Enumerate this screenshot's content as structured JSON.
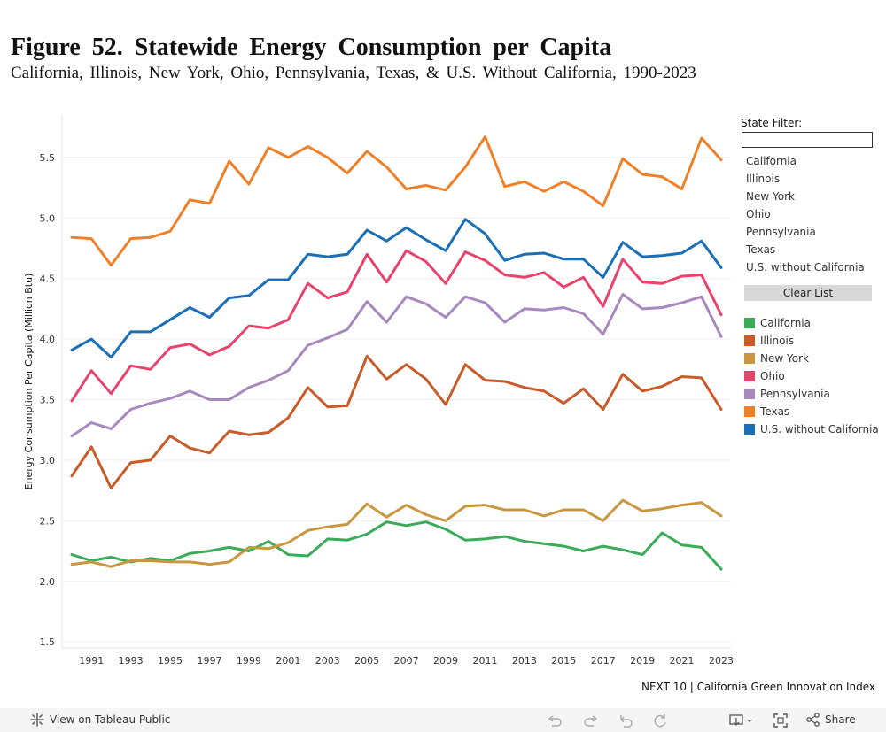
{
  "header": {
    "title": "Figure 52. Statewide Energy Consumption per Capita",
    "subtitle": "California, Illinois, New York, Ohio, Pennsylvania, Texas, & U.S. Without California, 1990-2023"
  },
  "filter": {
    "label": "State Filter:",
    "input_value": "",
    "items": [
      "California",
      "Illinois",
      "New York",
      "Ohio",
      "Pennsylvania",
      "Texas",
      "U.S. without California"
    ],
    "clear_label": "Clear List"
  },
  "credit": "NEXT 10 | California Green Innovation Index",
  "footer": {
    "view_label": "View on Tableau Public",
    "share_label": "Share",
    "icons": [
      "undo-icon",
      "redo-icon",
      "revert-icon",
      "refresh-icon",
      "download-icon",
      "fullscreen-icon",
      "share-icon"
    ]
  },
  "chart_data": {
    "type": "line",
    "ylabel": "Energy Consumption Per Capita (Million Btu)",
    "xlabel": "",
    "x": [
      1990,
      1991,
      1992,
      1993,
      1994,
      1995,
      1996,
      1997,
      1998,
      1999,
      2000,
      2001,
      2002,
      2003,
      2004,
      2005,
      2006,
      2007,
      2008,
      2009,
      2010,
      2011,
      2012,
      2013,
      2014,
      2015,
      2016,
      2017,
      2018,
      2019,
      2020,
      2021,
      2022,
      2023
    ],
    "xticks": [
      1991,
      1993,
      1995,
      1997,
      1999,
      2001,
      2003,
      2005,
      2007,
      2009,
      2011,
      2013,
      2015,
      2017,
      2019,
      2021,
      2023
    ],
    "yticks": [
      "1.5",
      "2.0",
      "2.5",
      "3.0",
      "3.5",
      "4.0",
      "4.5",
      "5.0",
      "5.5"
    ],
    "ylim": [
      1.45,
      5.85
    ],
    "grid": true,
    "legend_position": "right",
    "series": [
      {
        "name": "California",
        "color": "#3aab59",
        "values": [
          2.22,
          2.17,
          2.2,
          2.16,
          2.19,
          2.17,
          2.23,
          2.25,
          2.28,
          2.25,
          2.33,
          2.22,
          2.21,
          2.35,
          2.34,
          2.39,
          2.49,
          2.46,
          2.49,
          2.43,
          2.34,
          2.35,
          2.37,
          2.33,
          2.31,
          2.29,
          2.25,
          2.29,
          2.26,
          2.22,
          2.4,
          2.3,
          2.28,
          2.1
        ]
      },
      {
        "name": "Illinois",
        "color": "#c85b27",
        "values": [
          2.87,
          3.11,
          2.77,
          2.98,
          3.0,
          3.2,
          3.1,
          3.06,
          3.24,
          3.21,
          3.23,
          3.35,
          3.6,
          3.44,
          3.45,
          3.86,
          3.67,
          3.79,
          3.67,
          3.46,
          3.79,
          3.66,
          3.65,
          3.6,
          3.57,
          3.47,
          3.59,
          3.42,
          3.71,
          3.57,
          3.61,
          3.69,
          3.68,
          3.42
        ]
      },
      {
        "name": "New York",
        "color": "#c9973f",
        "values": [
          2.14,
          2.16,
          2.12,
          2.17,
          2.17,
          2.16,
          2.16,
          2.14,
          2.16,
          2.28,
          2.27,
          2.32,
          2.42,
          2.45,
          2.47,
          2.64,
          2.53,
          2.63,
          2.55,
          2.5,
          2.62,
          2.63,
          2.59,
          2.59,
          2.54,
          2.59,
          2.59,
          2.5,
          2.67,
          2.58,
          2.6,
          2.63,
          2.65,
          2.54
        ]
      },
      {
        "name": "Ohio",
        "color": "#e8436b",
        "values": [
          3.49,
          3.74,
          3.55,
          3.78,
          3.75,
          3.93,
          3.96,
          3.87,
          3.94,
          4.11,
          4.09,
          4.16,
          4.46,
          4.34,
          4.39,
          4.7,
          4.47,
          4.73,
          4.64,
          4.46,
          4.72,
          4.65,
          4.53,
          4.51,
          4.55,
          4.43,
          4.51,
          4.27,
          4.66,
          4.47,
          4.46,
          4.52,
          4.53,
          4.2
        ]
      },
      {
        "name": "Pennsylvania",
        "color": "#a889be",
        "values": [
          3.2,
          3.31,
          3.26,
          3.42,
          3.47,
          3.51,
          3.57,
          3.5,
          3.5,
          3.6,
          3.66,
          3.74,
          3.95,
          4.01,
          4.08,
          4.31,
          4.14,
          4.35,
          4.29,
          4.18,
          4.35,
          4.3,
          4.14,
          4.25,
          4.24,
          4.26,
          4.21,
          4.04,
          4.37,
          4.25,
          4.26,
          4.3,
          4.35,
          4.02
        ]
      },
      {
        "name": "Texas",
        "color": "#f08028",
        "values": [
          4.84,
          4.83,
          4.61,
          4.83,
          4.84,
          4.89,
          5.15,
          5.12,
          5.47,
          5.28,
          5.58,
          5.5,
          5.59,
          5.5,
          5.37,
          5.55,
          5.42,
          5.24,
          5.27,
          5.23,
          5.42,
          5.67,
          5.26,
          5.3,
          5.22,
          5.3,
          5.22,
          5.1,
          5.49,
          5.36,
          5.34,
          5.24,
          5.66,
          5.48
        ]
      },
      {
        "name": "U.S. without California",
        "color": "#1a6fb5",
        "values": [
          3.91,
          4.0,
          3.85,
          4.06,
          4.06,
          4.16,
          4.26,
          4.18,
          4.34,
          4.36,
          4.49,
          4.49,
          4.7,
          4.68,
          4.7,
          4.9,
          4.81,
          4.92,
          4.82,
          4.73,
          4.99,
          4.87,
          4.65,
          4.7,
          4.71,
          4.66,
          4.66,
          4.51,
          4.8,
          4.68,
          4.69,
          4.71,
          4.81,
          4.59
        ]
      }
    ]
  }
}
